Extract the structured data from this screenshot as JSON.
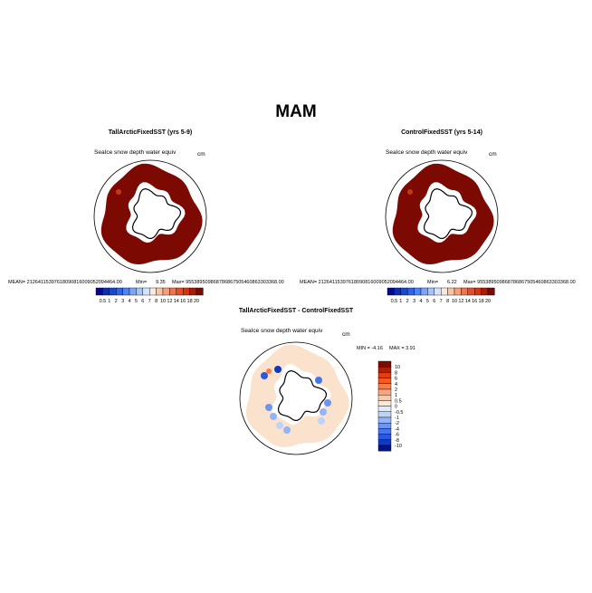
{
  "main_title": "MAM",
  "chart_data": [
    {
      "type": "heatmap",
      "title": "TallArcticFixedSST (yrs 5-9)",
      "subtitle": "SeaIce snow depth water equiv",
      "units": "cm",
      "stats": {
        "mean": "MEAN= 21264115397618090816009052094464.00",
        "min_label": "Min=",
        "min": "9.35",
        "max": "Max= 955389509868786867505460863303368.00"
      },
      "colorbar": {
        "labels": [
          "0.5",
          "1",
          "2",
          "3",
          "4",
          "5",
          "6",
          "7",
          "8",
          "10",
          "12",
          "14",
          "16",
          "18",
          "20"
        ],
        "colors": [
          "#08088c",
          "#0a2fb5",
          "#1546d6",
          "#2f63ee",
          "#4f84f5",
          "#7aa6fa",
          "#a6c4fb",
          "#d3e3fc",
          "#fce8da",
          "#f8c6a6",
          "#f4a07a",
          "#ef7550",
          "#ea4b23",
          "#d43410",
          "#a81b06",
          "#7a0a02"
        ]
      }
    },
    {
      "type": "heatmap",
      "title": "ControlFixedSST (yrs 5-14)",
      "subtitle": "SeaIce snow depth water equiv",
      "units": "cm",
      "stats": {
        "mean": "MEAN= 21264115397618090816009052094464.00",
        "min_label": "Min=",
        "min": "6.22",
        "max": "Max= 955389509868786867505460863303368.00"
      },
      "colorbar": {
        "labels": [
          "0.5",
          "1",
          "2",
          "3",
          "4",
          "5",
          "6",
          "7",
          "8",
          "10",
          "12",
          "14",
          "16",
          "18",
          "20"
        ]
      }
    },
    {
      "type": "heatmap",
      "title": "TallArcticFixedSST - ControlFixedSST",
      "subtitle": "SeaIce snow depth water equiv",
      "units": "cm",
      "stats": {
        "min": "MIN =  -4.16",
        "max": "MAX =   3.91"
      },
      "colorbar": {
        "labels": [
          "10",
          "8",
          "6",
          "4",
          "2",
          "1",
          "0.5",
          "0",
          "-0.5",
          "-1",
          "-2",
          "-4",
          "-6",
          "-8",
          "-10"
        ],
        "colors": [
          "#7a0a02",
          "#b01e06",
          "#e03d12",
          "#f45a22",
          "#f77e4a",
          "#f9a47c",
          "#fbc8a8",
          "#fde8d6",
          "#e0ecfb",
          "#bcd3fa",
          "#93b5f7",
          "#6b95f3",
          "#4676ee",
          "#2a58e0",
          "#1238bd",
          "#06128c"
        ]
      }
    }
  ]
}
